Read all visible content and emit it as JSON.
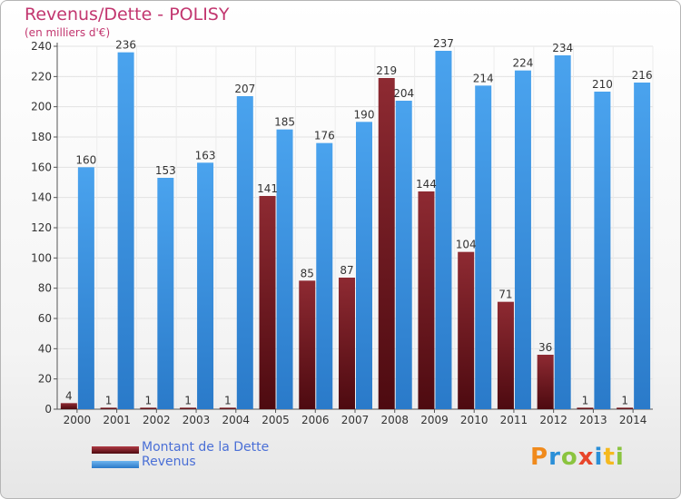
{
  "chart_data": {
    "type": "bar",
    "title": "Revenus/Dette - POLISY",
    "subtitle": "(en milliers d'€)",
    "categories": [
      "2000",
      "2001",
      "2002",
      "2003",
      "2004",
      "2005",
      "2006",
      "2007",
      "2008",
      "2009",
      "2010",
      "2011",
      "2012",
      "2013",
      "2014"
    ],
    "series": [
      {
        "name": "Montant de la Dette",
        "color": "#7a1a22",
        "values": [
          4,
          1,
          1,
          1,
          1,
          141,
          85,
          87,
          219,
          144,
          104,
          71,
          36,
          1,
          1
        ]
      },
      {
        "name": "Revenus",
        "color": "#3a8fde",
        "values": [
          160,
          236,
          153,
          163,
          207,
          185,
          176,
          190,
          204,
          237,
          214,
          224,
          234,
          210,
          216
        ]
      }
    ],
    "data_labels": [
      [
        "4",
        "1",
        "1",
        "1",
        "1",
        "141",
        "85",
        "87",
        "219",
        "144",
        "104",
        "71",
        "36",
        "1",
        "1"
      ],
      [
        "160",
        "236",
        "153",
        "163",
        "207",
        "185",
        "176",
        "190",
        "204",
        "237",
        "214",
        "224",
        "234",
        "210",
        "216"
      ]
    ],
    "ylim": [
      0,
      240
    ],
    "ytick_step": 20,
    "grid": true,
    "legend_position": "bottom-left"
  },
  "logo": {
    "letters": [
      "P",
      "r",
      "o",
      "x",
      "i",
      "t",
      "i"
    ]
  }
}
